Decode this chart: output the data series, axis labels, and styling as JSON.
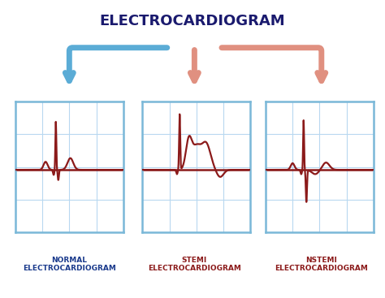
{
  "title": "ELECTROCARDIOGRAM",
  "title_color": "#1a1a6e",
  "title_fontsize": 13,
  "bg_color": "#ffffff",
  "grid_color": "#b8d8f0",
  "ecg_color": "#8b1a1a",
  "box_border_color": "#7ab8d8",
  "arrow_color_left": "#5bacd6",
  "arrow_color_center": "#e09080",
  "arrow_color_right": "#e09080",
  "labels": [
    "NORMAL\nELECTROCARDIOGRAM",
    "STEMI\nELECTROCARDIOGRAM",
    "NSTEMI\nELECTROCARDIOGRAM"
  ],
  "label_colors": [
    "#1a3a8c",
    "#8b1a1a",
    "#8b1a1a"
  ],
  "label_fontsize": 6.5
}
